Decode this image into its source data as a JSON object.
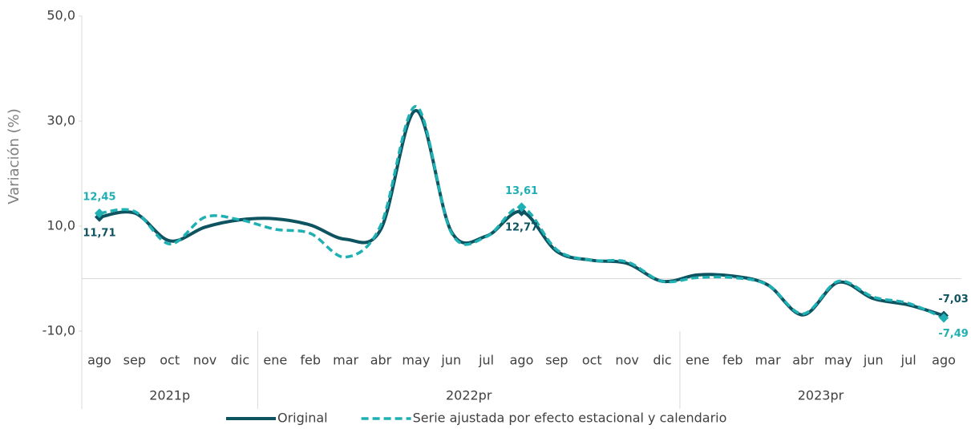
{
  "chart_data": {
    "type": "line",
    "y_label": "Variación (%)",
    "categories": [
      "ago",
      "sep",
      "oct",
      "nov",
      "dic",
      "ene",
      "feb",
      "mar",
      "abr",
      "may",
      "jun",
      "jul",
      "ago",
      "sep",
      "oct",
      "nov",
      "dic",
      "ene",
      "feb",
      "mar",
      "abr",
      "may",
      "jun",
      "jul",
      "ago"
    ],
    "category_groups": [
      {
        "name": "2021p",
        "count": 5
      },
      {
        "name": "2022pr",
        "count": 12
      },
      {
        "name": "2023pr",
        "count": 8
      }
    ],
    "series": [
      {
        "name": "Original",
        "color": "#0d5360",
        "dash": false,
        "values": [
          11.71,
          12.5,
          7.2,
          9.8,
          11.2,
          11.4,
          10.2,
          7.5,
          9.4,
          32.0,
          9.0,
          8.1,
          12.77,
          5.2,
          3.5,
          2.9,
          -0.5,
          0.7,
          0.5,
          -1.2,
          -6.9,
          -0.7,
          -3.8,
          -5.0,
          -7.03
        ],
        "value_labels": [
          "11,71",
          null,
          null,
          null,
          null,
          null,
          null,
          null,
          null,
          null,
          null,
          null,
          "12,77",
          null,
          null,
          null,
          null,
          null,
          null,
          null,
          null,
          null,
          null,
          null,
          "-7,03"
        ]
      },
      {
        "name": "Serie ajustada por efecto estacional y calendario",
        "color": "#1fb0b4",
        "dash": true,
        "values": [
          12.45,
          12.8,
          6.6,
          11.7,
          11.2,
          9.4,
          8.6,
          4.1,
          10.2,
          32.8,
          8.8,
          8.0,
          13.61,
          5.5,
          3.5,
          3.2,
          -0.5,
          0.2,
          0.2,
          -1.2,
          -6.7,
          -0.5,
          -3.5,
          -4.7,
          -7.49
        ],
        "value_labels": [
          "12,45",
          null,
          null,
          null,
          null,
          null,
          null,
          null,
          null,
          null,
          null,
          null,
          "13,61",
          null,
          null,
          null,
          null,
          null,
          null,
          null,
          null,
          null,
          null,
          null,
          "-7,49"
        ]
      }
    ],
    "ylim": [
      -10,
      50
    ],
    "yticks": [
      {
        "value": -10,
        "label": "-10,0"
      },
      {
        "value": 10,
        "label": "10,0"
      },
      {
        "value": 30,
        "label": "30,0"
      },
      {
        "value": 50,
        "label": "50,0"
      }
    ],
    "legend": "bottom"
  }
}
